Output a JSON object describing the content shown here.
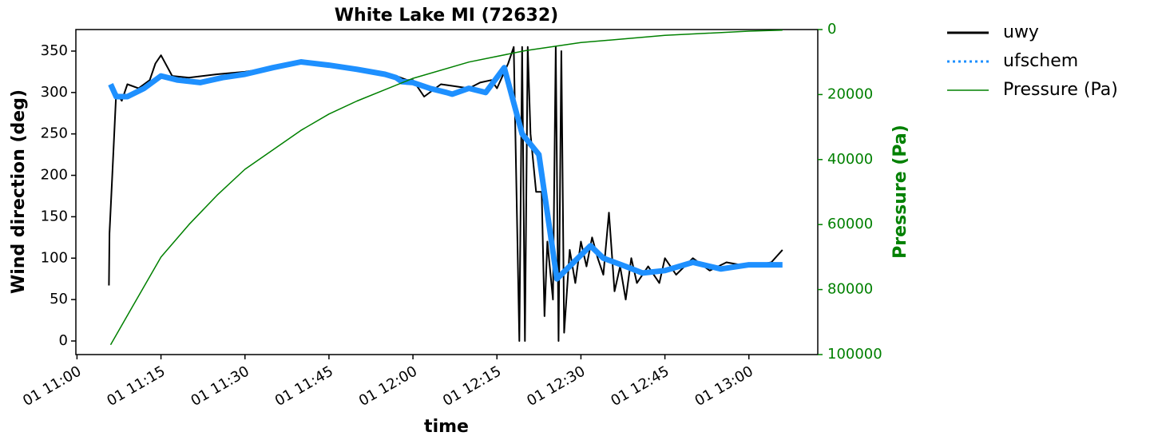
{
  "chart_data": {
    "type": "line",
    "title": "White Lake MI (72632)",
    "xlabel": "time",
    "ylabel": "Wind direction (deg)",
    "y2label": "Pressure (Pa)",
    "xlim": [
      659.8,
      792.3
    ],
    "xticks": [
      {
        "value": 660,
        "label": "01 11:00"
      },
      {
        "value": 675,
        "label": "01 11:15"
      },
      {
        "value": 690,
        "label": "01 11:30"
      },
      {
        "value": 705,
        "label": "01 11:45"
      },
      {
        "value": 720,
        "label": "01 12:00"
      },
      {
        "value": 735,
        "label": "01 12:15"
      },
      {
        "value": 750,
        "label": "01 12:30"
      },
      {
        "value": 765,
        "label": "01 12:45"
      },
      {
        "value": 780,
        "label": "01 13:00"
      }
    ],
    "ylim": [
      -16.4,
      376
    ],
    "yticks": [
      0,
      50,
      100,
      150,
      200,
      250,
      300,
      350
    ],
    "y2lim": [
      100000,
      0
    ],
    "y2ticks": [
      0,
      20000,
      40000,
      60000,
      80000,
      100000
    ],
    "series": [
      {
        "name": "uwy",
        "color": "#000000",
        "x": [
          665.7,
          665.8,
          666.3,
          667,
          668,
          669,
          671,
          673,
          674,
          675,
          677,
          680,
          685,
          690,
          695,
          700,
          705,
          710,
          715,
          717,
          719,
          720,
          722,
          725,
          727,
          730,
          732,
          734,
          735,
          737,
          738,
          739,
          739.5,
          740,
          740.5,
          741,
          742,
          743,
          743.5,
          744,
          745,
          745.5,
          746,
          746.5,
          747,
          748,
          749,
          750,
          751,
          752,
          753,
          754,
          755,
          756,
          757,
          758,
          759,
          760,
          762,
          764,
          765,
          767,
          770,
          773,
          776,
          780,
          784,
          786
        ],
        "values": [
          67,
          130,
          200,
          300,
          290,
          310,
          305,
          315,
          335,
          345,
          320,
          318,
          322,
          325,
          330,
          335,
          332,
          328,
          322,
          320,
          315,
          315,
          295,
          310,
          308,
          305,
          312,
          315,
          305,
          335,
          355,
          0,
          355,
          0,
          355,
          250,
          180,
          180,
          30,
          120,
          50,
          355,
          0,
          350,
          10,
          110,
          70,
          120,
          90,
          125,
          100,
          80,
          155,
          60,
          90,
          50,
          100,
          70,
          90,
          70,
          100,
          80,
          100,
          85,
          95,
          90,
          95,
          110
        ]
      },
      {
        "name": "ufschem",
        "color": "#1e90ff",
        "x": [
          666,
          667,
          669,
          672,
          675,
          678,
          682,
          686,
          690,
          695,
          700,
          705,
          710,
          715,
          717,
          718,
          720,
          723,
          726,
          727,
          730,
          733,
          736.3,
          739.5,
          742.5,
          745.7,
          751.7,
          754,
          758,
          761,
          765,
          770,
          775,
          780,
          786
        ],
        "values": [
          310,
          295,
          295,
          305,
          320,
          315,
          312,
          318,
          322,
          330,
          337,
          333,
          328,
          322,
          318,
          313,
          312,
          305,
          300,
          298,
          305,
          300,
          330,
          250,
          225,
          75,
          115,
          100,
          90,
          82,
          85,
          95,
          87,
          92,
          92
        ]
      },
      {
        "name": "Pressure (Pa)",
        "color": "#008000",
        "axis": "y2",
        "x": [
          666,
          670,
          675,
          680,
          685,
          690,
          695,
          700,
          705,
          710,
          715,
          720,
          730,
          740,
          750,
          765,
          780,
          786
        ],
        "values": [
          97000,
          85000,
          70000,
          60000,
          51000,
          43000,
          37000,
          31000,
          26000,
          22000,
          18500,
          15000,
          10000,
          6500,
          4000,
          1800,
          500,
          200
        ]
      }
    ]
  }
}
